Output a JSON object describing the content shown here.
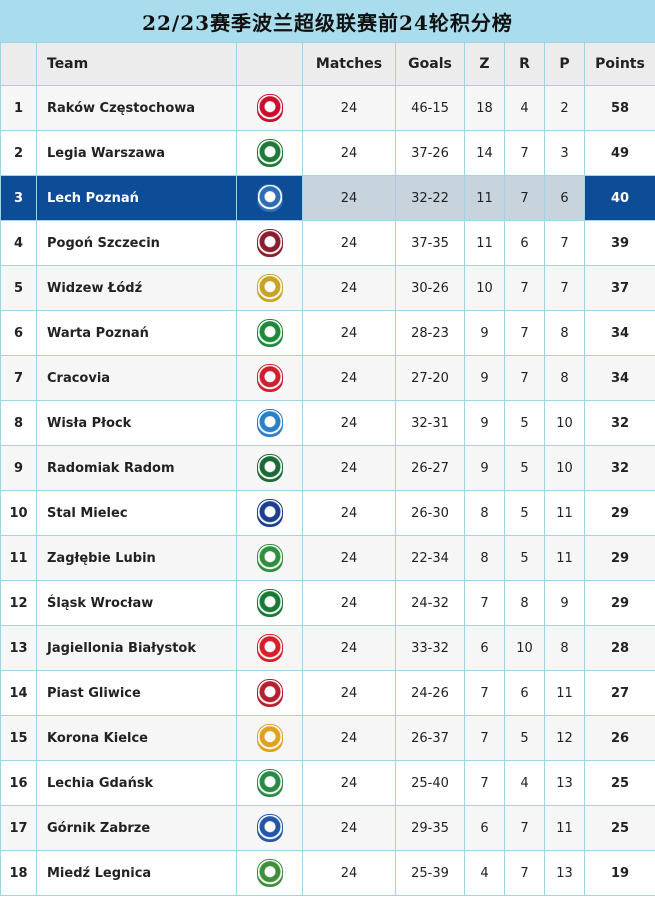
{
  "title": "22/23赛季波兰超级联赛前24轮积分榜",
  "headers": {
    "team": "Team",
    "matches": "Matches",
    "goals": "Goals",
    "z": "Z",
    "r": "R",
    "p": "P",
    "points": "Points"
  },
  "highlight_color": "#0d4d98",
  "rows": [
    {
      "rank": "1",
      "team": "Raków Częstochowa",
      "logo": "rakow-crest-icon",
      "color": "#c8102e",
      "matches": "24",
      "goals": "46-15",
      "z": "18",
      "r": "4",
      "p": "2",
      "points": "58"
    },
    {
      "rank": "2",
      "team": "Legia Warszawa",
      "logo": "legia-crest-icon",
      "color": "#1f7a3a",
      "matches": "24",
      "goals": "37-26",
      "z": "14",
      "r": "7",
      "p": "3",
      "points": "49"
    },
    {
      "rank": "3",
      "team": "Lech Poznań",
      "logo": "lech-crest-icon",
      "color": "#2e6db4",
      "matches": "24",
      "goals": "32-22",
      "z": "11",
      "r": "7",
      "p": "6",
      "points": "40",
      "highlight": true
    },
    {
      "rank": "4",
      "team": "Pogoń Szczecin",
      "logo": "pogon-crest-icon",
      "color": "#8b1e2d",
      "matches": "24",
      "goals": "37-35",
      "z": "11",
      "r": "6",
      "p": "7",
      "points": "39"
    },
    {
      "rank": "5",
      "team": "Widzew Łódź",
      "logo": "widzew-crest-icon",
      "color": "#c9a227",
      "matches": "24",
      "goals": "30-26",
      "z": "10",
      "r": "7",
      "p": "7",
      "points": "37"
    },
    {
      "rank": "6",
      "team": "Warta Poznań",
      "logo": "warta-crest-icon",
      "color": "#1d8a3b",
      "matches": "24",
      "goals": "28-23",
      "z": "9",
      "r": "7",
      "p": "8",
      "points": "34"
    },
    {
      "rank": "7",
      "team": "Cracovia",
      "logo": "cracovia-crest-icon",
      "color": "#d0202f",
      "matches": "24",
      "goals": "27-20",
      "z": "9",
      "r": "7",
      "p": "8",
      "points": "34"
    },
    {
      "rank": "8",
      "team": "Wisła Płock",
      "logo": "wisla-plock-crest-icon",
      "color": "#2a7fc9",
      "matches": "24",
      "goals": "32-31",
      "z": "9",
      "r": "5",
      "p": "10",
      "points": "32"
    },
    {
      "rank": "9",
      "team": "Radomiak Radom",
      "logo": "radomiak-crest-icon",
      "color": "#1c6b35",
      "matches": "24",
      "goals": "26-27",
      "z": "9",
      "r": "5",
      "p": "10",
      "points": "32"
    },
    {
      "rank": "10",
      "team": "Stal Mielec",
      "logo": "stal-crest-icon",
      "color": "#1a3f8f",
      "matches": "24",
      "goals": "26-30",
      "z": "8",
      "r": "5",
      "p": "11",
      "points": "29"
    },
    {
      "rank": "11",
      "team": "Zagłębie Lubin",
      "logo": "zaglebie-crest-icon",
      "color": "#2f8f3e",
      "matches": "24",
      "goals": "22-34",
      "z": "8",
      "r": "5",
      "p": "11",
      "points": "29"
    },
    {
      "rank": "12",
      "team": "Śląsk Wrocław",
      "logo": "slask-crest-icon",
      "color": "#187a35",
      "matches": "24",
      "goals": "24-32",
      "z": "7",
      "r": "8",
      "p": "9",
      "points": "29"
    },
    {
      "rank": "13",
      "team": "Jagiellonia Białystok",
      "logo": "jagiellonia-crest-icon",
      "color": "#d61f26",
      "matches": "24",
      "goals": "33-32",
      "z": "6",
      "r": "10",
      "p": "8",
      "points": "28"
    },
    {
      "rank": "14",
      "team": "Piast Gliwice",
      "logo": "piast-crest-icon",
      "color": "#b3202f",
      "matches": "24",
      "goals": "24-26",
      "z": "7",
      "r": "6",
      "p": "11",
      "points": "27"
    },
    {
      "rank": "15",
      "team": "Korona Kielce",
      "logo": "korona-crest-icon",
      "color": "#e2a11b",
      "matches": "24",
      "goals": "26-37",
      "z": "7",
      "r": "5",
      "p": "12",
      "points": "26"
    },
    {
      "rank": "16",
      "team": "Lechia Gdańsk",
      "logo": "lechia-crest-icon",
      "color": "#2a8a45",
      "matches": "24",
      "goals": "25-40",
      "z": "7",
      "r": "4",
      "p": "13",
      "points": "25"
    },
    {
      "rank": "17",
      "team": "Górnik Zabrze",
      "logo": "gornik-crest-icon",
      "color": "#2457a8",
      "matches": "24",
      "goals": "29-35",
      "z": "6",
      "r": "7",
      "p": "11",
      "points": "25"
    },
    {
      "rank": "18",
      "team": "Miedź Legnica",
      "logo": "miedz-crest-icon",
      "color": "#3d8f3a",
      "matches": "24",
      "goals": "25-39",
      "z": "4",
      "r": "7",
      "p": "13",
      "points": "19"
    }
  ]
}
